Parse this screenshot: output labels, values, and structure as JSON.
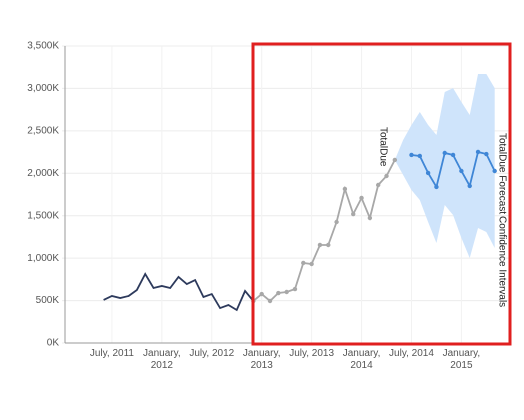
{
  "chart_data": {
    "type": "line",
    "x": [
      "2011-06",
      "2011-07",
      "2011-08",
      "2011-09",
      "2011-10",
      "2011-11",
      "2011-12",
      "2012-01",
      "2012-02",
      "2012-03",
      "2012-04",
      "2012-05",
      "2012-06",
      "2012-07",
      "2012-08",
      "2012-09",
      "2012-10",
      "2012-11",
      "2012-12",
      "2013-01",
      "2013-02",
      "2013-03",
      "2013-04",
      "2013-05",
      "2013-06",
      "2013-07",
      "2013-08",
      "2013-09",
      "2013-10",
      "2013-11",
      "2013-12",
      "2014-01",
      "2014-02",
      "2014-03",
      "2014-04",
      "2014-05",
      "2014-06",
      "2014-07",
      "2014-08",
      "2014-09",
      "2014-10",
      "2014-11",
      "2014-12",
      "2015-01",
      "2015-02",
      "2015-03",
      "2015-04",
      "2015-05"
    ],
    "series": [
      {
        "name": "TotalDue",
        "color": "#2d3a5c",
        "markers": false,
        "values": [
          507,
          554,
          530,
          554,
          625,
          813,
          648,
          672,
          648,
          778,
          695,
          742,
          542,
          577,
          412,
          448,
          389,
          613,
          495,
          577,
          495,
          589,
          601,
          636,
          943,
          931,
          1155,
          1155,
          1426,
          1815,
          1520,
          1709,
          1473,
          1862,
          1968,
          2157,
          null,
          null,
          null,
          null,
          null,
          null,
          null,
          null,
          null,
          null,
          null,
          null
        ]
      },
      {
        "name": "TotalDue Forecast",
        "color": "#3f86d6",
        "markers": true,
        "values": [
          null,
          null,
          null,
          null,
          null,
          null,
          null,
          null,
          null,
          null,
          null,
          null,
          null,
          null,
          null,
          null,
          null,
          null,
          null,
          null,
          null,
          null,
          null,
          null,
          null,
          null,
          null,
          null,
          null,
          null,
          null,
          null,
          null,
          null,
          null,
          null,
          null,
          2216,
          2204,
          2004,
          1839,
          2239,
          2216,
          2027,
          1851,
          2251,
          2227,
          2027
        ]
      }
    ],
    "band": {
      "name": "Confidence Intervals",
      "color": "#cfe4fb",
      "lower": [
        null,
        null,
        null,
        null,
        null,
        null,
        null,
        null,
        null,
        null,
        null,
        null,
        null,
        null,
        null,
        null,
        null,
        null,
        null,
        null,
        null,
        null,
        null,
        null,
        null,
        null,
        null,
        null,
        null,
        null,
        null,
        null,
        null,
        null,
        null,
        2157,
        1980,
        1803,
        1685,
        1426,
        1178,
        1626,
        1509,
        1237,
        1002,
        1355,
        1308,
        1120
      ],
      "upper": [
        null,
        null,
        null,
        null,
        null,
        null,
        null,
        null,
        null,
        null,
        null,
        null,
        null,
        null,
        null,
        null,
        null,
        null,
        null,
        null,
        null,
        null,
        null,
        null,
        null,
        null,
        null,
        null,
        null,
        null,
        null,
        null,
        null,
        null,
        null,
        2157,
        2392,
        2569,
        2722,
        2569,
        2451,
        2958,
        3004,
        2840,
        2687,
        3170,
        3170,
        3004
      ]
    },
    "highlight": {
      "x_from": "2012-12",
      "color": "#a8a8a8",
      "box_color": "#e01f1f"
    },
    "xlim": [
      "2011-01",
      "2015-06"
    ],
    "xticks": [
      {
        "value": "2011-07",
        "label": "July, 2011"
      },
      {
        "value": "2012-01",
        "label": "January, 2012"
      },
      {
        "value": "2012-07",
        "label": "July, 2012"
      },
      {
        "value": "2013-01",
        "label": "January, 2013"
      },
      {
        "value": "2013-07",
        "label": "July, 2013"
      },
      {
        "value": "2014-01",
        "label": "January, 2014"
      },
      {
        "value": "2014-07",
        "label": "July, 2014"
      },
      {
        "value": "2015-01",
        "label": "January, 2015"
      }
    ],
    "ylim": [
      0,
      3500
    ],
    "yticks": [
      {
        "value": 0,
        "label": "0K"
      },
      {
        "value": 500,
        "label": "500K"
      },
      {
        "value": 1000,
        "label": "1,000K"
      },
      {
        "value": 1500,
        "label": "1,500K"
      },
      {
        "value": 2000,
        "label": "2,000K"
      },
      {
        "value": 2500,
        "label": "2,500K"
      },
      {
        "value": 3000,
        "label": "3,000K"
      },
      {
        "value": 3500,
        "label": "3,500K"
      }
    ],
    "grid": true
  }
}
